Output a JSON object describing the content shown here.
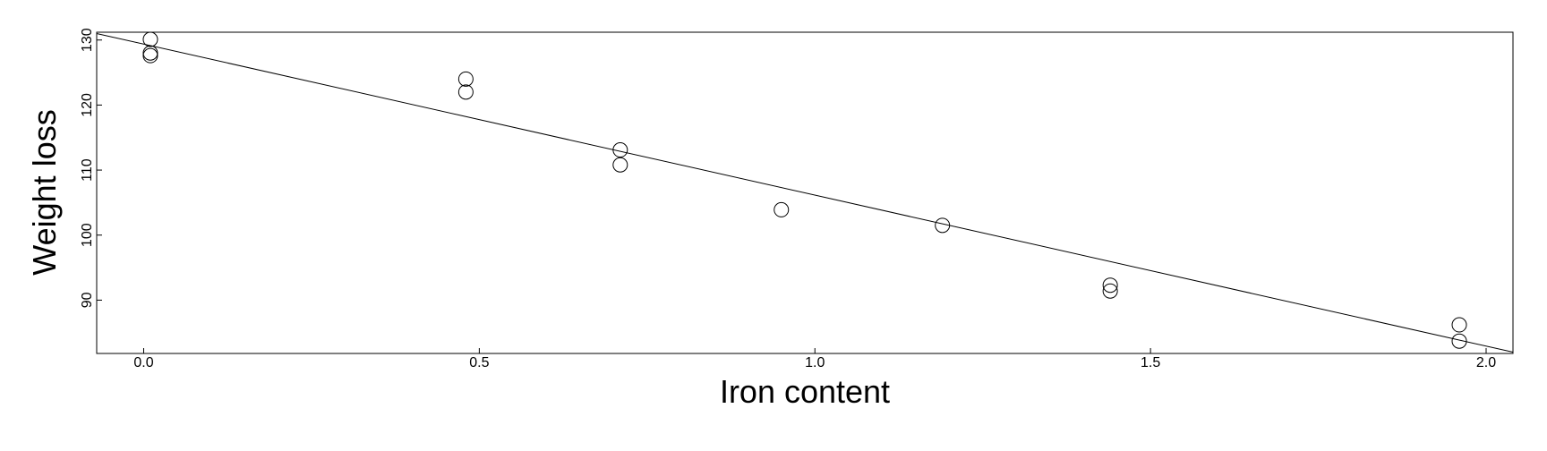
{
  "chart_data": {
    "type": "scatter",
    "title": "",
    "xlabel": "Iron content",
    "ylabel": "Weight loss",
    "xlim": [
      -0.07,
      2.04
    ],
    "ylim": [
      81.8,
      131.2
    ],
    "x_ticks": [
      {
        "value": 0.0,
        "label": "0.0"
      },
      {
        "value": 0.5,
        "label": "0.5"
      },
      {
        "value": 1.0,
        "label": "1.0"
      },
      {
        "value": 1.5,
        "label": "1.5"
      },
      {
        "value": 2.0,
        "label": "2.0"
      }
    ],
    "y_ticks": [
      {
        "value": 90,
        "label": "90"
      },
      {
        "value": 100,
        "label": "100"
      },
      {
        "value": 110,
        "label": "110"
      },
      {
        "value": 120,
        "label": "120"
      },
      {
        "value": 130,
        "label": "130"
      }
    ],
    "grid": false,
    "points": [
      {
        "x": 0.01,
        "y": 127.6
      },
      {
        "x": 0.01,
        "y": 130.1
      },
      {
        "x": 0.01,
        "y": 128.0
      },
      {
        "x": 0.48,
        "y": 124.0
      },
      {
        "x": 0.48,
        "y": 122.0
      },
      {
        "x": 0.71,
        "y": 113.1
      },
      {
        "x": 0.71,
        "y": 110.8
      },
      {
        "x": 0.95,
        "y": 103.9
      },
      {
        "x": 1.19,
        "y": 101.5
      },
      {
        "x": 1.44,
        "y": 92.3
      },
      {
        "x": 1.44,
        "y": 91.4
      },
      {
        "x": 1.96,
        "y": 86.2
      },
      {
        "x": 1.96,
        "y": 83.7
      }
    ],
    "fit_line": {
      "x": [
        -0.07,
        2.04
      ],
      "y": [
        131.0,
        82.0
      ]
    }
  }
}
